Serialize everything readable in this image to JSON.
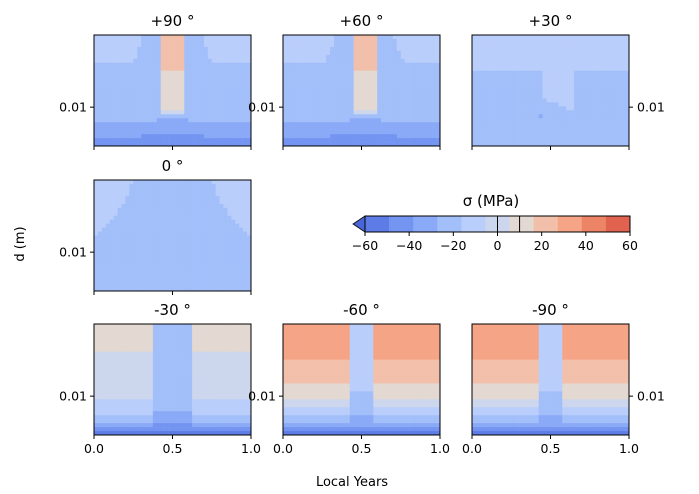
{
  "figure": {
    "ylabel": "d (m)",
    "xlabel": "Local Years"
  },
  "colorbar": {
    "title": "σ (MPa)",
    "min": -60,
    "max": 60,
    "ticks": [
      "−60",
      "−40",
      "−20",
      "0",
      "20",
      "40",
      "60"
    ],
    "tick_values": [
      -60,
      -40,
      -20,
      0,
      20,
      40,
      60
    ],
    "colors": [
      "#4a64d9",
      "#5d7ce6",
      "#7394f1",
      "#8aa9f7",
      "#a3bffa",
      "#bacefc",
      "#ccd6ec",
      "#e3d8d2",
      "#f2c0aa",
      "#f5a486",
      "#ee8466",
      "#e1634f",
      "#cc3d38"
    ]
  },
  "chart_data": [
    {
      "type": "heatmap",
      "title": "+90 °",
      "x_range": [
        0.0,
        1.0
      ],
      "y_tick": "0.01",
      "ylabel_side": "left",
      "field": "polar_warm_band",
      "band_center": 0.5,
      "band_max_MPa": 30,
      "near_surface_MPa": -50
    },
    {
      "type": "heatmap",
      "title": "+60 °",
      "x_range": [
        0.0,
        1.0
      ],
      "y_tick": "0.01",
      "ylabel_side": "left",
      "field": "polar_warm_band",
      "band_center": 0.52,
      "band_max_MPa": 30,
      "near_surface_MPa": -50
    },
    {
      "type": "heatmap",
      "title": "+30 °",
      "x_range": [
        0.0,
        1.0
      ],
      "y_tick": "0.01",
      "ylabel_side": "right",
      "field": "midlat_cool",
      "min_MPa": -25
    },
    {
      "type": "heatmap",
      "title": "0 °",
      "x_range": [
        0.0,
        1.0
      ],
      "y_tick": "0.01",
      "ylabel_side": "left",
      "field": "equatorial",
      "min_MPa": -25
    },
    {
      "type": "heatmap",
      "title": "-30 °",
      "x_range": [
        0.0,
        1.0
      ],
      "y_tick": "0.01",
      "ylabel_side": "left",
      "field": "south_30",
      "max_MPa": 15,
      "near_surface_MPa": -55
    },
    {
      "type": "heatmap",
      "title": "-60 °",
      "x_range": [
        0.0,
        1.0
      ],
      "y_tick": "0.01",
      "ylabel_side": "left",
      "field": "south_warm",
      "max_MPa": 45,
      "near_surface_MPa": -55
    },
    {
      "type": "heatmap",
      "title": "-90 °",
      "x_range": [
        0.0,
        1.0
      ],
      "y_tick": "0.01",
      "ylabel_side": "right",
      "field": "south_warm",
      "max_MPa": 45,
      "near_surface_MPa": -55
    }
  ],
  "x_tick_labels": [
    "0.0",
    "0.5",
    "1.0"
  ]
}
